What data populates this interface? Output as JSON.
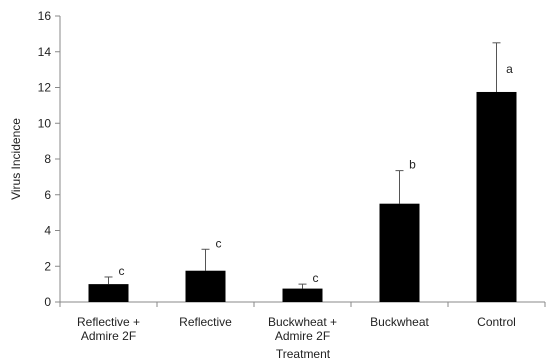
{
  "chart_data": {
    "type": "bar",
    "categories": [
      [
        "Reflective +",
        "Admire 2F"
      ],
      [
        "Reflective"
      ],
      [
        "Buckwheat +",
        "Admire 2F"
      ],
      [
        "Buckwheat"
      ],
      [
        "Control"
      ]
    ],
    "values": [
      1.0,
      1.75,
      0.75,
      5.5,
      11.75
    ],
    "error_upper": [
      1.4,
      2.95,
      1.0,
      7.35,
      14.5
    ],
    "significance_letters": [
      "c",
      "c",
      "c",
      "b",
      "a"
    ],
    "title": "",
    "xlabel": "Treatment",
    "ylabel": "Virus Incidence",
    "ylim": [
      0,
      16
    ],
    "yticks": [
      0,
      2,
      4,
      6,
      8,
      10,
      12,
      14,
      16
    ],
    "grid": false,
    "legend": "none",
    "bar_color": "#000000",
    "axis_color": "#888888"
  }
}
